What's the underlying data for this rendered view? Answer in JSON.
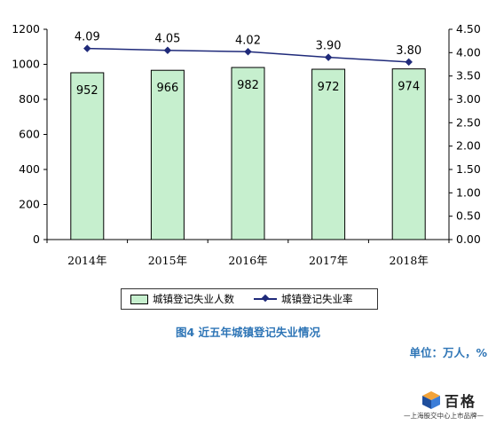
{
  "chart_data": {
    "type": "bar+line",
    "categories": [
      "2014年",
      "2015年",
      "2016年",
      "2017年",
      "2018年"
    ],
    "series": [
      {
        "name": "城镇登记失业人数",
        "type": "bar",
        "axis": "left",
        "values": [
          952,
          966,
          982,
          972,
          974
        ],
        "color": "#c6efce"
      },
      {
        "name": "城镇登记失业率",
        "type": "line",
        "axis": "right",
        "values": [
          4.09,
          4.05,
          4.02,
          3.9,
          3.8
        ],
        "color": "#1f2a7a"
      }
    ],
    "left_axis": {
      "min": 0,
      "max": 1200,
      "step": 200,
      "ticks": [
        "0",
        "200",
        "400",
        "600",
        "800",
        "1000",
        "1200"
      ]
    },
    "right_axis": {
      "min": 0,
      "max": 4.5,
      "step": 0.5,
      "ticks": [
        "0.00",
        "0.50",
        "1.00",
        "1.50",
        "2.00",
        "2.50",
        "3.00",
        "3.50",
        "4.00",
        "4.50"
      ]
    },
    "bar_labels": [
      "952",
      "966",
      "982",
      "972",
      "974"
    ],
    "line_labels": [
      "4.09",
      "4.05",
      "4.02",
      "3.90",
      "3.80"
    ],
    "grid": false,
    "legend_position": "bottom"
  },
  "legend": {
    "bar_label": "城镇登记失业人数",
    "line_label": "城镇登记失业率"
  },
  "caption": "图4  近五年城镇登记失业情况",
  "unit": "单位：万人，%",
  "brand": {
    "name": "百格",
    "tagline": "—上海股交中心上市品牌—"
  }
}
